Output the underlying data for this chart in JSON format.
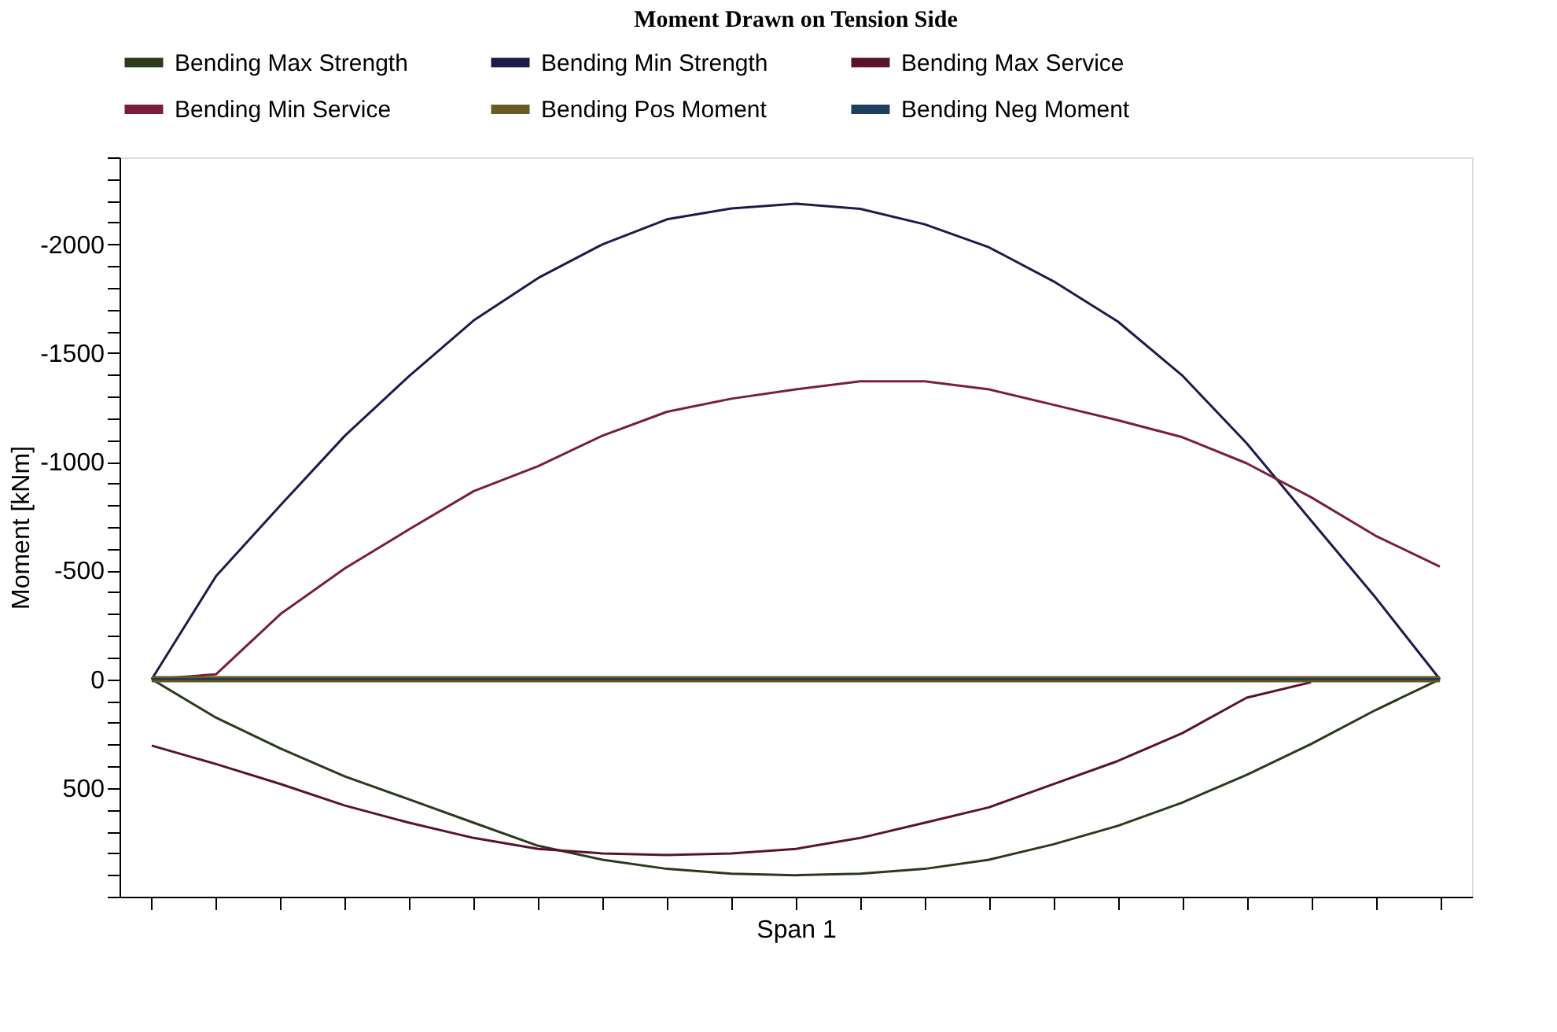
{
  "chart_data": {
    "type": "line",
    "title": "Moment Drawn on Tension Side",
    "xlabel": "Span 1",
    "ylabel": "Moment [kNm]",
    "categories": [
      null,
      null,
      null,
      null,
      null,
      null,
      null,
      null,
      null,
      null,
      null,
      null,
      null,
      null,
      null,
      null,
      null,
      null,
      null,
      null,
      null
    ],
    "series": [
      {
        "name": "Bending Max Strength",
        "color": "#2a3a1c",
        "values": [
          0,
          177,
          319,
          447,
          553,
          660,
          766,
          830,
          872,
          894,
          901,
          894,
          872,
          830,
          759,
          674,
          567,
          440,
          298,
          142,
          0
        ]
      },
      {
        "name": "Bending Min Strength",
        "color": "#1c1c4c",
        "values": [
          0,
          -475,
          -800,
          -1120,
          -1395,
          -1650,
          -1845,
          -2000,
          -2115,
          -2165,
          -2187,
          -2163,
          -2092,
          -1986,
          -1830,
          -1645,
          -1397,
          -1085,
          -730,
          -376,
          0
        ]
      },
      {
        "name": "Bending Max Service",
        "color": "#5a1428",
        "values": [
          305,
          390,
          482,
          581,
          660,
          730,
          780,
          801,
          808,
          801,
          780,
          730,
          660,
          589,
          482,
          376,
          248,
          85,
          14,
          null,
          null
        ]
      },
      {
        "name": "Bending Min Service",
        "color": "#7a1e3c",
        "values": [
          0,
          -23,
          -300,
          -510,
          -690,
          -865,
          -980,
          -1120,
          -1230,
          -1290,
          -1333,
          -1370,
          -1370,
          -1333,
          -1262,
          -1191,
          -1113,
          -993,
          -837,
          -660,
          -518
        ]
      },
      {
        "name": "Bending Pos Moment",
        "color": "#6b5a22",
        "values": [
          0,
          0,
          0,
          0,
          0,
          0,
          0,
          0,
          0,
          0,
          0,
          0,
          0,
          0,
          0,
          0,
          0,
          0,
          0,
          0,
          0
        ]
      },
      {
        "name": "Bending Neg Moment",
        "color": "#1f3f5f",
        "values": [
          0,
          0,
          0,
          0,
          0,
          0,
          0,
          0,
          0,
          0,
          0,
          0,
          0,
          0,
          0,
          0,
          0,
          0,
          0,
          0,
          0
        ]
      }
    ],
    "ylim": [
      1000,
      -2400
    ],
    "yticks": [
      {
        "value": -2400,
        "label": null
      },
      {
        "value": -2300,
        "label": null
      },
      {
        "value": -2200,
        "label": null
      },
      {
        "value": -2100,
        "label": null
      },
      -2000,
      {
        "value": -1900,
        "label": null
      },
      {
        "value": -1800,
        "label": null
      },
      {
        "value": -1700,
        "label": null
      },
      {
        "value": -1600,
        "label": null
      },
      -1500,
      {
        "value": -1400,
        "label": null
      },
      {
        "value": -1300,
        "label": null
      },
      {
        "value": -1200,
        "label": null
      },
      {
        "value": -1100,
        "label": null
      },
      -1000,
      {
        "value": -900,
        "label": null
      },
      {
        "value": -800,
        "label": null
      },
      {
        "value": -700,
        "label": null
      },
      {
        "value": -600,
        "label": null
      },
      -500,
      {
        "value": -400,
        "label": null
      },
      {
        "value": -300,
        "label": null
      },
      {
        "value": -200,
        "label": null
      },
      {
        "value": -100,
        "label": null
      },
      0,
      {
        "value": 100,
        "label": null
      },
      {
        "value": 200,
        "label": null
      },
      {
        "value": 300,
        "label": null
      },
      {
        "value": 400,
        "label": null
      },
      500,
      {
        "value": 600,
        "label": null
      },
      {
        "value": 700,
        "label": null
      },
      {
        "value": 800,
        "label": null
      },
      {
        "value": 900,
        "label": null
      },
      {
        "value": 1000,
        "label": null
      }
    ],
    "tick_labels": "y",
    "grid": false,
    "legend": "top",
    "marker": "none",
    "line_style": "solid"
  }
}
